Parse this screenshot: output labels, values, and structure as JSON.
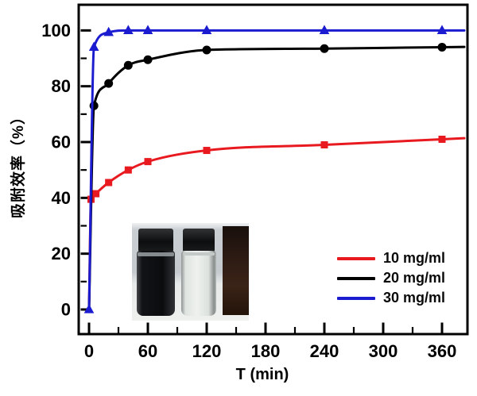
{
  "chart_data": {
    "type": "line",
    "title": "",
    "xlabel": "T (min)",
    "ylabel": "吸附效率（%）",
    "x_ticks": [
      0,
      60,
      120,
      180,
      240,
      300,
      360
    ],
    "x_minor_ticks": [
      30,
      90,
      150,
      210,
      270,
      330
    ],
    "y_ticks": [
      0,
      20,
      40,
      60,
      80,
      100
    ],
    "y_minor_ticks": [
      10,
      30,
      50,
      70,
      90
    ],
    "xlim": [
      -10,
      386
    ],
    "ylim": [
      -9,
      109
    ],
    "grid": false,
    "legend_position": "lower right",
    "axis_color": "#000000",
    "series": [
      {
        "name": "10 mg/ml",
        "color": "#e8191f",
        "marker": "square",
        "skip_first_marker": true,
        "points": [
          [
            0,
            0
          ],
          [
            2,
            39.5
          ],
          [
            7,
            41.5
          ],
          [
            20,
            45.5
          ],
          [
            40,
            50
          ],
          [
            60,
            53
          ],
          [
            120,
            57
          ],
          [
            240,
            59
          ],
          [
            360,
            61
          ]
        ]
      },
      {
        "name": "20 mg/ml",
        "color": "#000000",
        "marker": "circle",
        "skip_first_marker": true,
        "points": [
          [
            0,
            0
          ],
          [
            5,
            73
          ],
          [
            20,
            81
          ],
          [
            40,
            87.5
          ],
          [
            60,
            89.5
          ],
          [
            120,
            93
          ],
          [
            240,
            93.5
          ],
          [
            360,
            94
          ]
        ]
      },
      {
        "name": "30 mg/ml",
        "color": "#1b1bd0",
        "marker": "triangle",
        "skip_first_marker": false,
        "points": [
          [
            0,
            0
          ],
          [
            5,
            94
          ],
          [
            20,
            99.3
          ],
          [
            40,
            100
          ],
          [
            60,
            100
          ],
          [
            120,
            100
          ],
          [
            240,
            100
          ],
          [
            360,
            100
          ]
        ]
      }
    ],
    "inset_photo": {
      "content": "two sample vials, left dark suspension, right clear solution, dark block at right",
      "colors": {
        "background": "#c9ced3",
        "dark_vial": "#0d0e10",
        "clear_vial": "#eef1ee",
        "block": "#2e1c14"
      }
    }
  }
}
